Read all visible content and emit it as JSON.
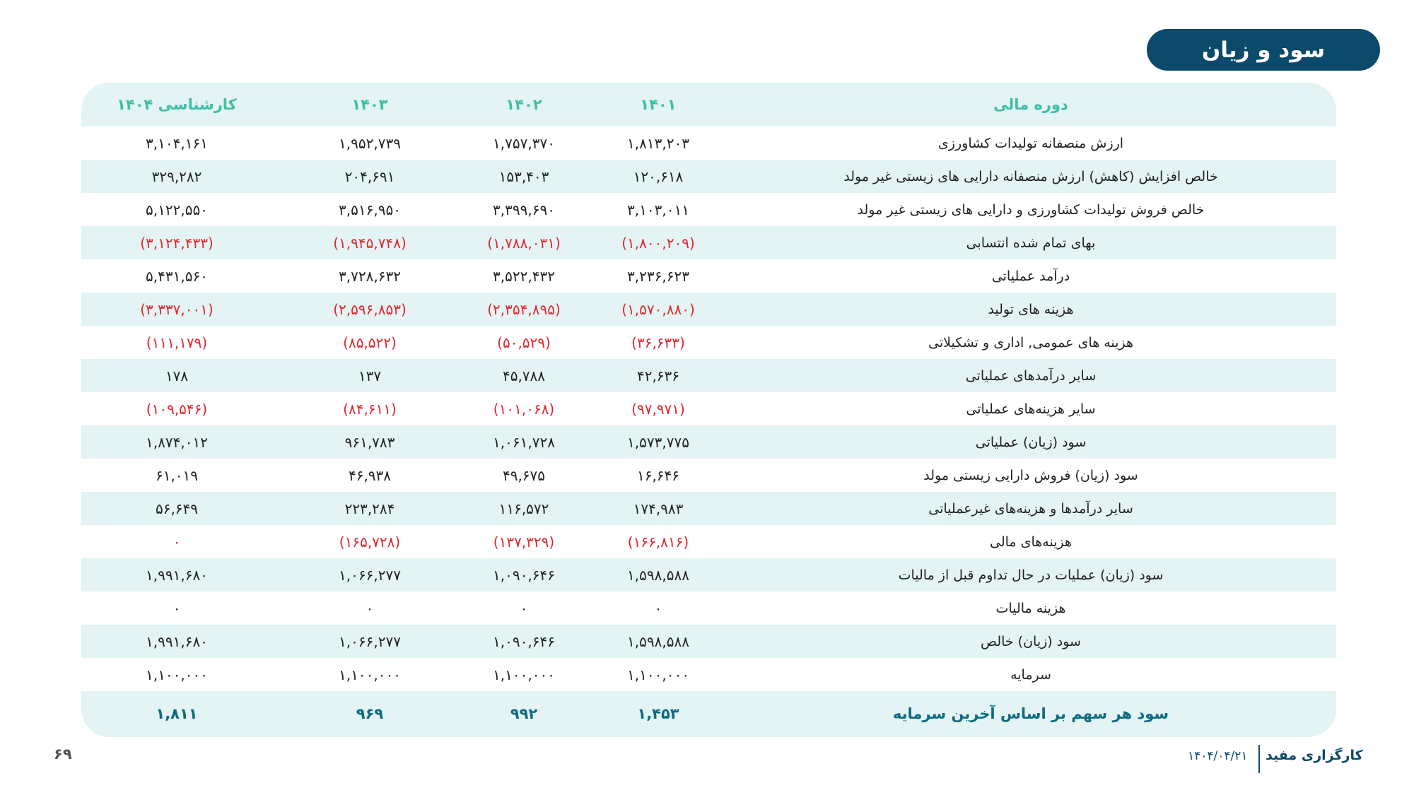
{
  "title": "سود و زیان",
  "colors": {
    "title_bg": "#0b4a6b",
    "header_text": "#3dbfa6",
    "negative": "#e0262e",
    "eps_text": "#0e6b80",
    "row_tint": "#e4f3f3"
  },
  "table": {
    "headers": {
      "label": "دوره مالی",
      "cols": [
        "۱۴۰۱",
        "۱۴۰۲",
        "۱۴۰۳",
        "کارشناسی ۱۴۰۴"
      ]
    },
    "rows": [
      {
        "label": "ارزش منصفانه تولیدات کشاورزی",
        "values": [
          "۱,۸۱۳,۲۰۳",
          "۱,۷۵۷,۳۷۰",
          "۱,۹۵۲,۷۳۹",
          "۳,۱۰۴,۱۶۱"
        ],
        "red": [
          false,
          false,
          false,
          false
        ]
      },
      {
        "label": "خالص افزایش (کاهش) ارزش منصفانه دارایی های زیستی غیر مولد",
        "values": [
          "۱۲۰,۶۱۸",
          "۱۵۳,۴۰۳",
          "۲۰۴,۶۹۱",
          "۳۲۹,۲۸۲"
        ],
        "red": [
          false,
          false,
          false,
          false
        ]
      },
      {
        "label": "خالص فروش تولیدات کشاورزی و دارایی های زیستی غیر مولد",
        "values": [
          "۳,۱۰۳,۰۱۱",
          "۳,۳۹۹,۶۹۰",
          "۳,۵۱۶,۹۵۰",
          "۵,۱۲۲,۵۵۰"
        ],
        "red": [
          false,
          false,
          false,
          false
        ]
      },
      {
        "label": "بهای تمام شده انتسابی",
        "values": [
          "(۱,۸۰۰,۲۰۹)",
          "(۱,۷۸۸,۰۳۱)",
          "(۱,۹۴۵,۷۴۸)",
          "(۳,۱۲۴,۴۳۳)"
        ],
        "red": [
          true,
          true,
          true,
          true
        ]
      },
      {
        "label": "درآمد عملیاتی",
        "values": [
          "۳,۲۳۶,۶۲۳",
          "۳,۵۲۲,۴۳۲",
          "۳,۷۲۸,۶۳۲",
          "۵,۴۳۱,۵۶۰"
        ],
        "red": [
          false,
          false,
          false,
          false
        ]
      },
      {
        "label": "هزینه های تولید",
        "values": [
          "(۱,۵۷۰,۸۸۰)",
          "(۲,۳۵۴,۸۹۵)",
          "(۲,۵۹۶,۸۵۳)",
          "(۳,۳۳۷,۰۰۱)"
        ],
        "red": [
          true,
          true,
          true,
          true
        ]
      },
      {
        "label": "هزینه های عمومی, اداری و تشکیلاتی",
        "values": [
          "(۳۶,۶۳۳)",
          "(۵۰,۵۲۹)",
          "(۸۵,۵۲۲)",
          "(۱۱۱,۱۷۹)"
        ],
        "red": [
          true,
          true,
          true,
          true
        ]
      },
      {
        "label": "سایر درآمدهای عملیاتی",
        "values": [
          "۴۲,۶۳۶",
          "۴۵,۷۸۸",
          "۱۳۷",
          "۱۷۸"
        ],
        "red": [
          false,
          false,
          false,
          false
        ]
      },
      {
        "label": "سایر هزینه‌های عملیاتی",
        "values": [
          "(۹۷,۹۷۱)",
          "(۱۰۱,۰۶۸)",
          "(۸۴,۶۱۱)",
          "(۱۰۹,۵۴۶)"
        ],
        "red": [
          true,
          true,
          true,
          true
        ]
      },
      {
        "label": "سود (زیان) عملیاتی",
        "values": [
          "۱,۵۷۳,۷۷۵",
          "۱,۰۶۱,۷۲۸",
          "۹۶۱,۷۸۳",
          "۱,۸۷۴,۰۱۲"
        ],
        "red": [
          false,
          false,
          false,
          false
        ]
      },
      {
        "label": "سود (زیان) فروش دارایی زیستی مولد",
        "values": [
          "۱۶,۶۴۶",
          "۴۹,۶۷۵",
          "۴۶,۹۳۸",
          "۶۱,۰۱۹"
        ],
        "red": [
          false,
          false,
          false,
          false
        ]
      },
      {
        "label": "سایر درآمدها و هزینه‌های غیرعملیاتی",
        "values": [
          "۱۷۴,۹۸۳",
          "۱۱۶,۵۷۲",
          "۲۲۳,۲۸۴",
          "۵۶,۶۴۹"
        ],
        "red": [
          false,
          false,
          false,
          false
        ]
      },
      {
        "label": "هزینه‌های مالی",
        "values": [
          "(۱۶۶,۸۱۶)",
          "(۱۳۷,۳۲۹)",
          "(۱۶۵,۷۲۸)",
          "۰"
        ],
        "red": [
          true,
          true,
          true,
          true
        ]
      },
      {
        "label": "سود (زیان) عملیات در حال تداوم قبل از مالیات",
        "values": [
          "۱,۵۹۸,۵۸۸",
          "۱,۰۹۰,۶۴۶",
          "۱,۰۶۶,۲۷۷",
          "۱,۹۹۱,۶۸۰"
        ],
        "red": [
          false,
          false,
          false,
          false
        ]
      },
      {
        "label": "هزینه مالیات",
        "values": [
          "۰",
          "۰",
          "۰",
          "۰"
        ],
        "red": [
          false,
          false,
          false,
          false
        ]
      },
      {
        "label": "سود (زیان) خالص",
        "values": [
          "۱,۵۹۸,۵۸۸",
          "۱,۰۹۰,۶۴۶",
          "۱,۰۶۶,۲۷۷",
          "۱,۹۹۱,۶۸۰"
        ],
        "red": [
          false,
          false,
          false,
          false
        ]
      },
      {
        "label": "سرمایه",
        "values": [
          "۱,۱۰۰,۰۰۰",
          "۱,۱۰۰,۰۰۰",
          "۱,۱۰۰,۰۰۰",
          "۱,۱۰۰,۰۰۰"
        ],
        "red": [
          false,
          false,
          false,
          false
        ]
      }
    ],
    "eps": {
      "label": "سود هر سهم بر اساس آخرین سرمایه",
      "values": [
        "۱,۴۵۳",
        "۹۹۲",
        "۹۶۹",
        "۱,۸۱۱"
      ]
    }
  },
  "footer": {
    "page": "۶۹",
    "brand": "کارگزاری مفید",
    "date": "۱۴۰۴/۰۴/۲۱"
  }
}
